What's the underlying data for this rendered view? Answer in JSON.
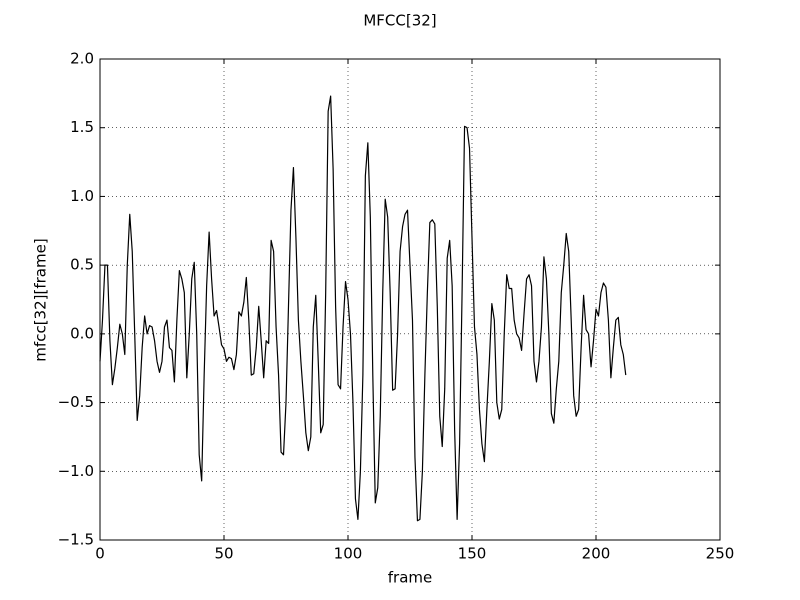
{
  "chart_data": {
    "type": "line",
    "title": "MFCC[32]",
    "x_label": "frame",
    "y_label": "mfcc[32][frame]",
    "x": [
      0,
      1,
      2,
      3,
      4,
      5,
      6,
      7,
      8,
      9,
      10,
      11,
      12,
      13,
      14,
      15,
      16,
      17,
      18,
      19,
      20,
      21,
      22,
      23,
      24,
      25,
      26,
      27,
      28,
      29,
      30,
      31,
      32,
      33,
      34,
      35,
      36,
      37,
      38,
      39,
      40,
      41,
      42,
      43,
      44,
      45,
      46,
      47,
      48,
      49,
      50,
      51,
      52,
      53,
      54,
      55,
      56,
      57,
      58,
      59,
      60,
      61,
      62,
      63,
      64,
      65,
      66,
      67,
      68,
      69,
      70,
      71,
      72,
      73,
      74,
      75,
      76,
      77,
      78,
      79,
      80,
      81,
      82,
      83,
      84,
      85,
      86,
      87,
      88,
      89,
      90,
      91,
      92,
      93,
      94,
      95,
      96,
      97,
      98,
      99,
      100,
      101,
      102,
      103,
      104,
      105,
      106,
      107,
      108,
      109,
      110,
      111,
      112,
      113,
      114,
      115,
      116,
      117,
      118,
      119,
      120,
      121,
      122,
      123,
      124,
      125,
      126,
      127,
      128,
      129,
      130,
      131,
      132,
      133,
      134,
      135,
      136,
      137,
      138,
      139,
      140,
      141,
      142,
      143,
      144,
      145,
      146,
      147,
      148,
      149,
      150,
      151,
      152,
      153,
      154,
      155,
      156,
      157,
      158,
      159,
      160,
      161,
      162,
      163,
      164,
      165,
      166,
      167,
      168,
      169,
      170,
      171,
      172,
      173,
      174,
      175,
      176,
      177,
      178,
      179,
      180,
      181,
      182,
      183,
      184,
      185,
      186,
      187,
      188,
      189,
      190,
      191,
      192,
      193,
      194,
      195,
      196,
      197,
      198,
      199,
      200,
      201,
      202,
      203,
      204,
      205,
      206,
      207,
      208,
      209,
      210,
      211,
      212
    ],
    "series": [
      {
        "color": "#000000",
        "values": [
          -0.2,
          0.1,
          0.5,
          0.5,
          -0.05,
          -0.37,
          -0.25,
          -0.1,
          0.07,
          0,
          -0.15,
          0.5,
          0.87,
          0.6,
          0,
          -0.63,
          -0.45,
          -0.1,
          0.13,
          0.0,
          0.06,
          0.05,
          -0.05,
          -0.2,
          -0.28,
          -0.2,
          0.05,
          0.1,
          -0.1,
          -0.12,
          -0.35,
          0.1,
          0.46,
          0.4,
          0.3,
          -0.32,
          0.0,
          0.4,
          0.52,
          0.0,
          -0.88,
          -1.07,
          -0.3,
          0.35,
          0.74,
          0.4,
          0.13,
          0.17,
          0.05,
          -0.08,
          -0.11,
          -0.2,
          -0.17,
          -0.18,
          -0.26,
          -0.15,
          0.16,
          0.13,
          0.23,
          0.41,
          0.1,
          -0.3,
          -0.29,
          -0.1,
          0.2,
          -0.05,
          -0.32,
          -0.05,
          -0.07,
          0.68,
          0.6,
          0.05,
          -0.3,
          -0.86,
          -0.88,
          -0.5,
          0.2,
          0.9,
          1.21,
          0.7,
          0.1,
          -0.2,
          -0.45,
          -0.72,
          -0.85,
          -0.75,
          0.05,
          0.28,
          -0.2,
          -0.72,
          -0.66,
          0.3,
          1.62,
          1.73,
          1.2,
          0.2,
          -0.37,
          -0.4,
          0.05,
          0.38,
          0.25,
          0.0,
          -0.5,
          -1.2,
          -1.35,
          -1.0,
          -0.3,
          1.15,
          1.39,
          0.85,
          -0.3,
          -1.23,
          -1.12,
          -0.6,
          0.3,
          0.98,
          0.85,
          0.3,
          -0.41,
          -0.4,
          0.0,
          0.6,
          0.78,
          0.87,
          0.9,
          0.5,
          0.1,
          -0.9,
          -1.36,
          -1.35,
          -1.0,
          -0.3,
          0.3,
          0.81,
          0.83,
          0.8,
          0.2,
          -0.6,
          -0.82,
          -0.4,
          0.55,
          0.68,
          0.35,
          -0.7,
          -1.35,
          -0.8,
          0.3,
          1.51,
          1.5,
          1.35,
          0.7,
          0.05,
          -0.15,
          -0.55,
          -0.8,
          -0.93,
          -0.55,
          -0.2,
          0.22,
          0.1,
          -0.5,
          -0.62,
          -0.55,
          0.0,
          0.43,
          0.33,
          0.33,
          0.1,
          0.0,
          -0.03,
          -0.12,
          0.15,
          0.4,
          0.43,
          0.35,
          -0.2,
          -0.35,
          -0.2,
          0.05,
          0.56,
          0.4,
          0.0,
          -0.58,
          -0.65,
          -0.4,
          -0.2,
          0.3,
          0.5,
          0.73,
          0.6,
          0.1,
          -0.45,
          -0.6,
          -0.55,
          -0.1,
          0.28,
          0.03,
          0.0,
          -0.24,
          -0.05,
          0.18,
          0.13,
          0.3,
          0.37,
          0.34,
          0.1,
          -0.32,
          -0.1,
          0.1,
          0.12,
          -0.08,
          -0.15,
          -0.3
        ]
      }
    ],
    "xlim": [
      0,
      250
    ],
    "xticks": [
      0,
      50,
      100,
      150,
      200,
      250
    ],
    "ylim": [
      -1.5,
      2.0
    ],
    "yticks": [
      {
        "value": -1.5,
        "label": "−1.5"
      },
      {
        "value": -1.0,
        "label": "−1.0"
      },
      {
        "value": -0.5,
        "label": "−0.5"
      },
      {
        "value": 0,
        "label": "0.0"
      },
      {
        "value": 0.5,
        "label": "0.5"
      },
      {
        "value": 1.0,
        "label": "1.0"
      },
      {
        "value": 1.5,
        "label": "1.5"
      },
      {
        "value": 2.0,
        "label": "2.0"
      }
    ],
    "grid": true
  }
}
